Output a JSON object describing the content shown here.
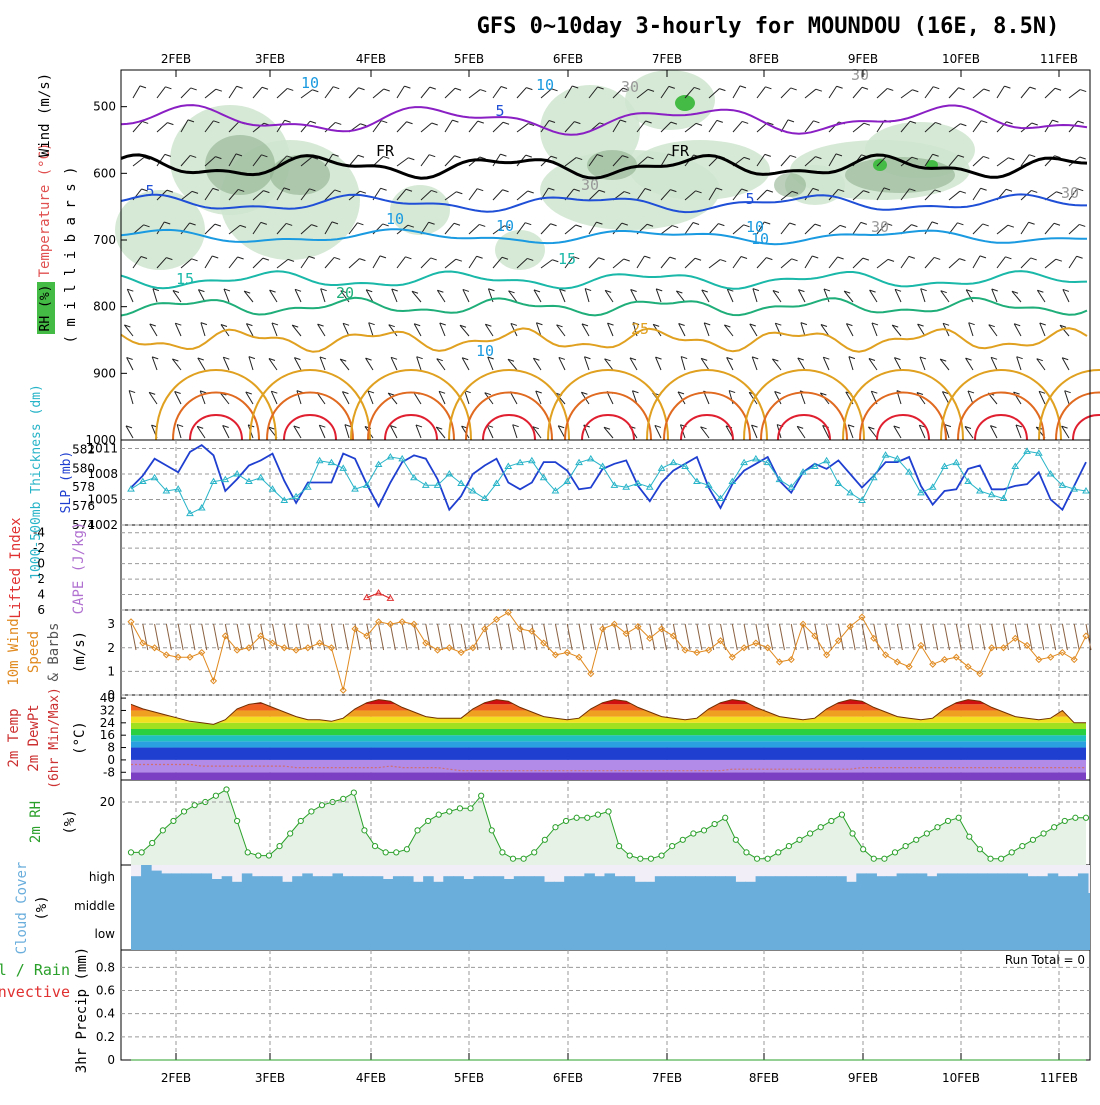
{
  "title": "GFS 0~10day 3-hourly for MOUNDOU (16E, 8.5N)",
  "colors": {
    "rh_fill": "#cfe5cf",
    "rh_dark": "#8fb08f",
    "rh_green": "#44bb44",
    "isotherm_purple": "#8a1fc4",
    "isotherm_freeze": "#000000",
    "isotherm_blue": "#1f4fd6",
    "isotherm_lightblue": "#1a9ae0",
    "isotherm_teal": "#19b8a8",
    "isotherm_green": "#1fae7a",
    "isotherm_orange": "#e0a020",
    "isotherm_darkorange": "#e06a20",
    "isotherm_red": "#e02030",
    "slp": "#1f3fd0",
    "thickness": "#28b4c8",
    "lifted": "#e03030",
    "cape": "#b070d0",
    "wind10": "#e08a20",
    "temp_fill": "#e05020",
    "rh2m": "#2aa02a",
    "cloud": "#6aaedc",
    "cloud_bg": "#f2eef8"
  },
  "chart_data": [
    {
      "id": "upper-air",
      "type": "heatmap",
      "title": "GFS 0~10day 3-hourly for MOUNDOU (16E, 8.5N)",
      "ylabel": [
        "RH (%)",
        "Temperature (°C)",
        "Wind (m/s)",
        "( m i l l i b a r s )"
      ],
      "x_tick_labels": [
        "2FEB",
        "3FEB",
        "4FEB",
        "5FEB",
        "6FEB",
        "7FEB",
        "8FEB",
        "9FEB",
        "10FEB",
        "11FEB"
      ],
      "y_tick_labels": [
        "500",
        "600",
        "700",
        "800",
        "900",
        "1000"
      ],
      "y_values": [
        500,
        600,
        700,
        800,
        900,
        1000
      ],
      "ylim": [
        445,
        1000
      ],
      "contour_labels": [
        "10",
        "5",
        "30",
        "FR",
        "FR",
        "30",
        "5",
        "10",
        "10",
        "10",
        "5",
        "10",
        "15",
        "15",
        "20",
        "25",
        "10",
        "30",
        "30",
        "30",
        "10"
      ],
      "isotherm_levels": [
        -5,
        0,
        5,
        10,
        15,
        20,
        25,
        30,
        35
      ]
    },
    {
      "id": "slp-thickness",
      "type": "line",
      "ylabel_left": "1000-500mb Thickness (dm)",
      "ylabel_right": "SLP (mb)",
      "left_ticks": [
        "582",
        "580",
        "578",
        "576",
        "574"
      ],
      "right_ticks": [
        "1011",
        "1008",
        "1005",
        "1002"
      ],
      "left_range": [
        574,
        583
      ],
      "right_range": [
        1002,
        1012
      ],
      "series": [
        {
          "name": "SLP (mb)",
          "values": [
            1006.4,
            1007.8,
            1009.8,
            1009.0,
            1008.2,
            1010.6,
            1011.4,
            1010.2,
            1006.0,
            1007.4,
            1009.0,
            1009.6,
            1010.4,
            1007.2,
            1004.6,
            1007.0,
            1007.0,
            1007.0,
            1010.4,
            1009.8,
            1006.8,
            1004.2,
            1007.0,
            1009.4,
            1010.2,
            1009.8,
            1007.4,
            1003.8,
            1005.4,
            1008.0,
            1009.0,
            1009.8,
            1007.0,
            1006.2,
            1007.0,
            1009.4,
            1009.4,
            1008.4,
            1006.2,
            1006.4,
            1008.6,
            1009.2,
            1009.6,
            1006.6,
            1004.8,
            1007.0,
            1008.4,
            1009.2,
            1010.0,
            1006.4,
            1004.0,
            1006.8,
            1008.4,
            1009.2,
            1010.0,
            1007.2,
            1005.8,
            1008.2,
            1009.2,
            1008.6,
            1009.6,
            1008.0,
            1006.4,
            1007.8,
            1009.4,
            1009.4,
            1010.0,
            1006.6,
            1004.4,
            1006.0,
            1006.2,
            1008.6,
            1009.0,
            1006.2,
            1006.2,
            1006.6,
            1006.8,
            1008.2,
            1005.0,
            1003.8,
            1006.6,
            1009.4
          ]
        },
        {
          "name": "1000-500mb Thickness (dm)",
          "values": [
            577.8,
            578.6,
            579.0,
            577.6,
            577.8,
            575.2,
            575.8,
            578.6,
            578.8,
            579.4,
            578.6,
            579.0,
            577.8,
            576.6,
            577.0,
            578.0,
            580.8,
            580.6,
            580.0,
            577.8,
            578.2,
            580.4,
            581.2,
            581.0,
            579.0,
            578.2,
            578.2,
            579.4,
            578.4,
            577.6,
            576.8,
            578.4,
            580.2,
            580.6,
            580.8,
            579.0,
            577.6,
            578.6,
            580.6,
            581.0,
            580.2,
            578.2,
            578.0,
            578.4,
            578.0,
            580.0,
            580.6,
            580.2,
            578.6,
            578.2,
            576.8,
            578.6,
            580.6,
            581.0,
            580.6,
            578.8,
            578.0,
            579.6,
            580.2,
            580.8,
            578.4,
            577.4,
            576.6,
            579.0,
            581.4,
            581.0,
            579.6,
            577.4,
            578.0,
            580.2,
            580.6,
            578.6,
            577.6,
            577.2,
            576.8,
            580.2,
            581.8,
            581.6,
            579.4,
            578.2,
            577.8,
            577.6
          ]
        }
      ]
    },
    {
      "id": "lifted-cape",
      "type": "line",
      "ylabel_left": "Lifted Index",
      "ylabel_right": "CAPE (J/kg)",
      "left_ticks": [
        "-4",
        "-2",
        "0",
        "2",
        "4",
        "6"
      ],
      "left_range": [
        -5,
        6
      ],
      "series": [
        {
          "name": "Lifted Index",
          "x_index": [
            20,
            21,
            22
          ],
          "values": [
            4.4,
            3.8,
            4.5
          ]
        }
      ]
    },
    {
      "id": "wind10m",
      "type": "line",
      "ylabel": [
        "10m Wind",
        "Speed",
        "& Barbs",
        "(m/s)"
      ],
      "y_ticks": [
        "3",
        "2",
        "1",
        "0"
      ],
      "ylim": [
        0,
        3.6
      ],
      "series": [
        {
          "name": "10m Wind Speed (m/s)",
          "values": [
            3.1,
            2.2,
            2.0,
            1.7,
            1.6,
            1.6,
            1.8,
            0.6,
            2.5,
            1.9,
            2.0,
            2.5,
            2.2,
            2.0,
            1.9,
            2.0,
            2.2,
            2.0,
            0.2,
            2.8,
            2.5,
            3.1,
            3.0,
            3.1,
            3.0,
            2.2,
            1.9,
            2.0,
            1.8,
            2.0,
            2.8,
            3.2,
            3.5,
            2.8,
            2.7,
            2.2,
            1.7,
            1.8,
            1.6,
            0.9,
            2.8,
            3.0,
            2.6,
            2.9,
            2.4,
            2.8,
            2.5,
            1.9,
            1.8,
            1.9,
            2.3,
            1.6,
            2.0,
            2.2,
            2.0,
            1.4,
            1.5,
            3.0,
            2.5,
            1.7,
            2.3,
            2.9,
            3.3,
            2.4,
            1.7,
            1.4,
            1.2,
            2.1,
            1.3,
            1.5,
            1.6,
            1.2,
            0.9,
            2.0,
            2.0,
            2.4,
            2.1,
            1.5,
            1.6,
            1.8,
            1.5,
            2.5
          ]
        }
      ]
    },
    {
      "id": "temp2m",
      "type": "area",
      "ylabel": [
        "2m Temp",
        "2m DewPt",
        "(6hr Min/Max)",
        "(°C)"
      ],
      "y_ticks": [
        "40",
        "32",
        "24",
        "16",
        "8",
        "0",
        "-8"
      ],
      "ylim": [
        -13,
        42
      ],
      "series": [
        {
          "name": "2m Temp (°C)",
          "values": [
            36,
            33,
            31,
            29,
            27,
            25,
            24,
            23,
            26,
            33,
            36,
            37,
            34,
            31,
            28,
            26,
            26,
            25,
            27,
            33,
            37,
            39,
            38,
            34,
            31,
            28,
            27,
            27,
            27,
            33,
            37,
            39,
            38,
            34,
            31,
            28,
            27,
            26,
            27,
            33,
            37,
            39,
            38,
            34,
            31,
            28,
            27,
            26,
            27,
            33,
            37,
            39,
            38,
            34,
            31,
            28,
            27,
            26,
            27,
            33,
            37,
            39,
            38,
            34,
            31,
            28,
            27,
            26,
            27,
            33,
            37,
            39,
            38,
            34,
            31,
            28,
            27,
            26,
            27,
            32,
            24,
            24
          ]
        },
        {
          "name": "2m DewPt (°C)",
          "values": [
            -3,
            -3,
            -3,
            -3,
            -3,
            -3,
            -4,
            -4,
            -4,
            -4,
            -4,
            -4,
            -4,
            -4,
            -5,
            -5,
            -5,
            -5,
            -5,
            -5,
            -5,
            -5,
            -4,
            -5,
            -5,
            -5,
            -5,
            -6,
            -7,
            -7,
            -7,
            -7,
            -7,
            -7,
            -7,
            -7,
            -7,
            -7,
            -7,
            -7,
            -7,
            -7,
            -7,
            -7,
            -7,
            -7,
            -7,
            -7,
            -7,
            -7,
            -7,
            -6,
            -6,
            -6,
            -6,
            -6,
            -6,
            -6,
            -6,
            -6,
            -6,
            -6,
            -5,
            -5,
            -5,
            -5,
            -5,
            -5,
            -5,
            -5,
            -5,
            -5,
            -5,
            -5,
            -5,
            -5,
            -5,
            -5,
            -5,
            -5,
            -5,
            -5
          ]
        }
      ]
    },
    {
      "id": "rh2m",
      "type": "area",
      "ylabel": [
        "2m RH",
        "(%)"
      ],
      "y_ticks": [
        "20"
      ],
      "ylim": [
        0,
        27
      ],
      "series": [
        {
          "name": "2m RH (%)",
          "values": [
            4,
            4,
            7,
            11,
            14,
            17,
            19,
            20,
            22,
            24,
            14,
            4,
            3,
            3,
            6,
            10,
            14,
            17,
            19,
            20,
            21,
            23,
            11,
            6,
            4,
            4,
            5,
            11,
            14,
            16,
            17,
            18,
            18,
            22,
            11,
            4,
            2,
            2,
            4,
            8,
            12,
            14,
            15,
            15,
            16,
            17,
            6,
            3,
            2,
            2,
            3,
            6,
            8,
            10,
            11,
            13,
            15,
            8,
            4,
            2,
            2,
            4,
            6,
            8,
            10,
            12,
            14,
            16,
            10,
            5,
            2,
            2,
            4,
            6,
            8,
            10,
            12,
            14,
            15,
            9,
            5,
            2,
            2,
            4,
            6,
            8,
            10,
            12,
            14,
            15,
            15
          ]
        }
      ]
    },
    {
      "id": "cloud",
      "type": "bar",
      "ylabel": [
        "Cloud Cover",
        "(%)"
      ],
      "y_ticks": [
        "high",
        "middle",
        "low"
      ],
      "series": [
        {
          "name": "high cloud (%)",
          "values": [
            60,
            100,
            80,
            70,
            70,
            70,
            70,
            70,
            50,
            60,
            40,
            70,
            60,
            60,
            60,
            40,
            60,
            70,
            60,
            60,
            70,
            60,
            60,
            60,
            60,
            50,
            60,
            60,
            40,
            60,
            40,
            60,
            60,
            50,
            60,
            60,
            60,
            50,
            60,
            60,
            60,
            40,
            40,
            60,
            60,
            70,
            60,
            70,
            60,
            60,
            40,
            40,
            60,
            60,
            60,
            60,
            60,
            60,
            60,
            60,
            40,
            40,
            60,
            60,
            60,
            60,
            60,
            60,
            60,
            60,
            60,
            40,
            70,
            70,
            60,
            60,
            70,
            70,
            70,
            60,
            70,
            70,
            70,
            70,
            70,
            70,
            70,
            70,
            70,
            60,
            60,
            70,
            60,
            60,
            70
          ]
        }
      ]
    },
    {
      "id": "precip",
      "type": "line",
      "ylabel": [
        "Total / Rain",
        "Convective",
        "3hr Precip (mm)"
      ],
      "y_ticks": [
        "0.8",
        "0.6",
        "0.4",
        "0.2",
        "0"
      ],
      "ylim": [
        0,
        0.95
      ],
      "annotation": "Run Total = 0",
      "series": [
        {
          "name": "Total / Rain (mm)",
          "values": [
            0,
            0,
            0,
            0,
            0,
            0,
            0,
            0,
            0,
            0,
            0,
            0,
            0,
            0,
            0,
            0,
            0,
            0,
            0,
            0,
            0,
            0,
            0,
            0,
            0,
            0,
            0,
            0,
            0,
            0,
            0,
            0,
            0,
            0,
            0,
            0,
            0,
            0,
            0,
            0,
            0,
            0,
            0,
            0,
            0,
            0,
            0,
            0,
            0,
            0,
            0,
            0,
            0,
            0,
            0,
            0,
            0,
            0,
            0,
            0,
            0,
            0,
            0,
            0,
            0,
            0,
            0,
            0,
            0,
            0,
            0,
            0,
            0,
            0,
            0,
            0,
            0,
            0,
            0,
            0,
            0,
            0
          ]
        }
      ]
    }
  ]
}
